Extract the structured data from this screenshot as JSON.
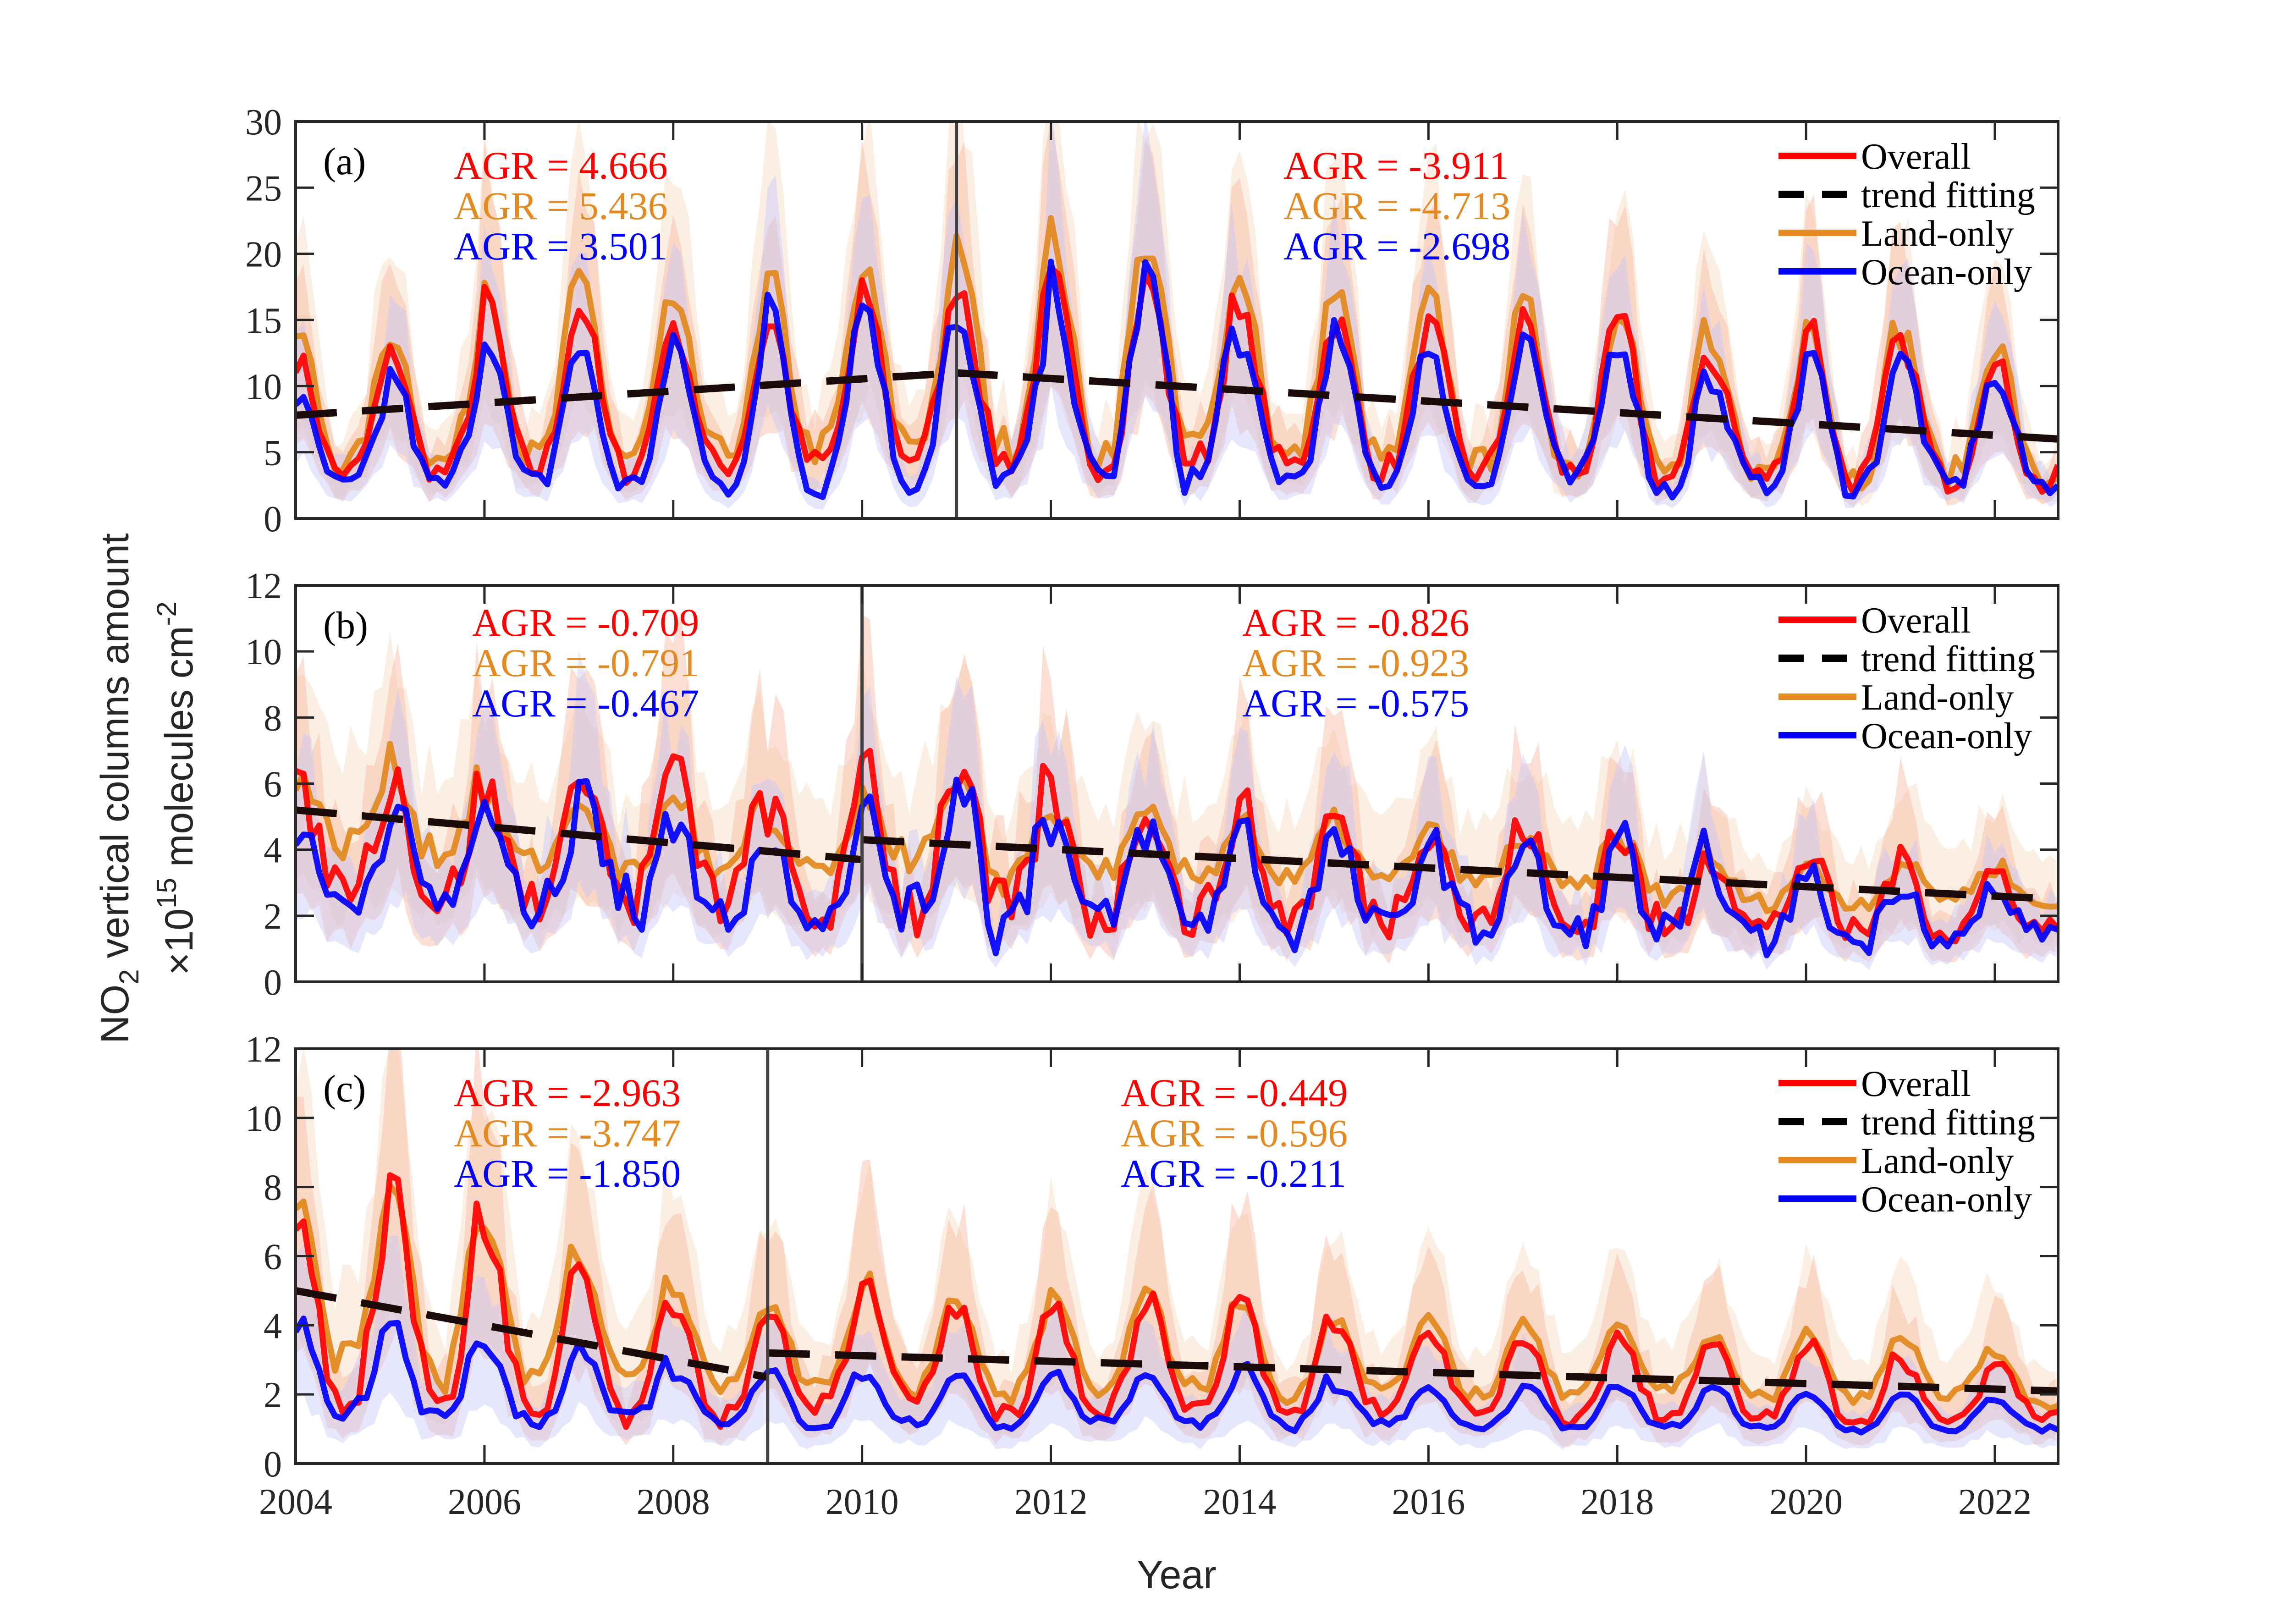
{
  "chart_data": {
    "type": "line",
    "xlabel": "Year",
    "ylabel_line1": "NO",
    "ylabel_sub": "2",
    "ylabel_line1_rest": " vertical columns amount",
    "ylabel_line2_prefix": "×10",
    "ylabel_line2_sup": "15",
    "ylabel_line2_mid": " molecules cm",
    "ylabel_line2_sup2": "-2",
    "xlim": [
      2004,
      2022.67
    ],
    "xticks": [
      2004,
      2006,
      2008,
      2010,
      2012,
      2014,
      2016,
      2018,
      2020,
      2022
    ],
    "xtick_labels": [
      "2004",
      "2006",
      "2008",
      "2010",
      "2012",
      "2014",
      "2016",
      "2018",
      "2020",
      "2022"
    ],
    "legend": {
      "placement": "top-right",
      "entries": [
        {
          "label": "Overall",
          "style": "solid",
          "color": "#ff0000"
        },
        {
          "label": "trend fitting",
          "style": "dashed",
          "color": "#000000"
        },
        {
          "label": "Land-only",
          "style": "solid",
          "color": "#e38a22"
        },
        {
          "label": "Ocean-only",
          "style": "solid",
          "color": "#0000ff"
        }
      ]
    },
    "colors": {
      "overall": "#ff0000",
      "land": "#e38a22",
      "ocean": "#0000ff",
      "trend": "#000000",
      "band_overall": "#f8b8a0",
      "band_land": "#f7dcc0",
      "band_ocean": "#c8c8f8"
    },
    "years": [
      2004,
      2005,
      2006,
      2007,
      2008,
      2009,
      2010,
      2011,
      2012,
      2013,
      2014,
      2015,
      2016,
      2017,
      2018,
      2019,
      2020,
      2021,
      2022
    ],
    "panels": [
      {
        "label": "(a)",
        "ylim": [
          0,
          30
        ],
        "yticks": [
          0,
          5,
          10,
          15,
          20,
          25,
          30
        ],
        "breakpoint": 2011.0,
        "agr_left": {
          "overall": "AGR = 4.666",
          "land": "AGR = 5.436",
          "ocean": "AGR = 3.501"
        },
        "agr_right": {
          "overall": "AGR = -3.911",
          "land": "AGR = -4.713",
          "ocean": "AGR = -2.698"
        },
        "trend": [
          {
            "x": 2004,
            "y": 7.8
          },
          {
            "x": 2011,
            "y": 11.0
          },
          {
            "x": 2022.67,
            "y": 6.0
          }
        ],
        "series": [
          {
            "name": "Overall",
            "peak": [
              12,
              12.5,
              16.5,
              16,
              14,
              15,
              17,
              18,
              18,
              18,
              15,
              15,
              14.5,
              15,
              15,
              11.5,
              15,
              13,
              11.5
            ],
            "trough": [
              3.5,
              3.5,
              3.8,
              3.8,
              4.0,
              4.2,
              4.8,
              4.5,
              4.3,
              4.5,
              4.0,
              3.8,
              3.5,
              3.5,
              3.0,
              3.2,
              3.0,
              3.0,
              2.5
            ]
          },
          {
            "name": "Land-only",
            "peak": [
              14,
              14,
              18.5,
              18,
              15.5,
              18,
              18.5,
              20.5,
              21.5,
              21,
              18,
              17,
              16.5,
              16,
              16.5,
              12,
              16,
              14,
              13
            ],
            "trough": [
              4.2,
              4.3,
              4.5,
              4.7,
              5.0,
              5.3,
              6.0,
              5.5,
              5.2,
              5.5,
              4.5,
              4.5,
              4.0,
              4.0,
              3.5,
              3.5,
              3.2,
              3.5,
              2.8
            ]
          },
          {
            "name": "Ocean-only",
            "peak": [
              9,
              11,
              14,
              12.5,
              13,
              16,
              16.5,
              14,
              18,
              18.5,
              12,
              14,
              12,
              14,
              13.5,
              9.5,
              13,
              12,
              10
            ],
            "trough": [
              2.5,
              2.5,
              2.5,
              2.5,
              2.5,
              2.8,
              3.0,
              3.0,
              3.0,
              3.0,
              3.0,
              3.0,
              2.8,
              2.8,
              2.2,
              2.5,
              2.5,
              2.5,
              2.5
            ]
          }
        ]
      },
      {
        "label": "(b)",
        "ylim": [
          0,
          12
        ],
        "yticks": [
          0,
          2,
          4,
          6,
          8,
          10,
          12
        ],
        "breakpoint": 2010.0,
        "agr_left": {
          "overall": "AGR = -0.709",
          "land": "AGR = -0.791",
          "ocean": "AGR = -0.467"
        },
        "agr_right": {
          "overall": "AGR = -0.826",
          "land": "AGR = -0.923",
          "ocean": "AGR = -0.575"
        },
        "trend": [
          {
            "x": 2004,
            "y": 5.2
          },
          {
            "x": 2010,
            "y": 3.7
          },
          {
            "x": 2010.01,
            "y": 4.3
          },
          {
            "x": 2022.67,
            "y": 2.5
          }
        ],
        "series": [
          {
            "name": "Overall",
            "peak": [
              5.8,
              6.3,
              5.7,
              7.0,
              6.2,
              5.2,
              7.0,
              6.6,
              5.5,
              5.5,
              5.2,
              5.0,
              4.8,
              4.8,
              4.5,
              3.8,
              3.8,
              3.6,
              3.3
            ],
            "trough": [
              3.0,
              2.5,
              2.6,
              2.5,
              2.5,
              2.0,
              2.3,
              2.0,
              2.0,
              2.0,
              2.0,
              2.0,
              1.8,
              1.6,
              1.6,
              1.6,
              1.5,
              1.5,
              1.6
            ]
          },
          {
            "name": "Land-only",
            "peak": [
              6.3,
              6.6,
              5.4,
              5.6,
              5.8,
              4.6,
              5.8,
              5.8,
              5.0,
              5.0,
              5.0,
              4.8,
              4.5,
              4.4,
              4.4,
              3.5,
              3.5,
              3.6,
              3.5
            ],
            "trough": [
              4.2,
              4.0,
              3.6,
              3.4,
              3.2,
              3.4,
              3.8,
              3.2,
              3.4,
              3.2,
              3.0,
              3.0,
              3.0,
              2.8,
              2.6,
              2.4,
              2.4,
              2.6,
              2.3
            ]
          },
          {
            "name": "Ocean-only",
            "peak": [
              4.6,
              5.4,
              5.0,
              6.6,
              4.6,
              4.2,
              5.2,
              6.6,
              4.8,
              4.6,
              4.6,
              4.2,
              4.2,
              4.0,
              4.4,
              3.2,
              3.2,
              3.0,
              2.6
            ],
            "trough": [
              2.4,
              2.4,
              2.2,
              2.2,
              2.0,
              2.0,
              2.2,
              1.8,
              1.8,
              1.8,
              1.6,
              1.6,
              1.6,
              1.4,
              1.4,
              1.2,
              1.2,
              1.2,
              1.5
            ]
          }
        ]
      },
      {
        "label": "(c)",
        "ylim": [
          0,
          12
        ],
        "yticks": [
          0,
          2,
          4,
          6,
          8,
          10,
          12
        ],
        "breakpoint": 2009.0,
        "agr_left": {
          "overall": "AGR = -2.963",
          "land": "AGR = -3.747",
          "ocean": "AGR = -1.850"
        },
        "agr_right": {
          "overall": "AGR = -0.449",
          "land": "AGR = -0.596",
          "ocean": "AGR = -0.211"
        },
        "trend": [
          {
            "x": 2004,
            "y": 5.0
          },
          {
            "x": 2009,
            "y": 2.5
          },
          {
            "x": 2009.01,
            "y": 3.2
          },
          {
            "x": 2022.67,
            "y": 2.1
          }
        ],
        "series": [
          {
            "name": "Overall",
            "peak": [
              7.3,
              8.2,
              6.8,
              5.8,
              4.6,
              4.4,
              5.4,
              4.5,
              4.5,
              4.8,
              4.7,
              4.0,
              3.8,
              3.5,
              3.7,
              3.4,
              3.5,
              2.9,
              3.0
            ],
            "trough": [
              1.9,
              1.8,
              1.6,
              1.5,
              1.4,
              1.7,
              1.8,
              1.4,
              1.6,
              1.5,
              1.4,
              1.6,
              1.4,
              1.3,
              1.4,
              1.3,
              1.2,
              1.2,
              1.4
            ]
          },
          {
            "name": "Land-only",
            "peak": [
              7.5,
              8.1,
              7.0,
              5.9,
              5.0,
              4.7,
              5.4,
              4.6,
              5.0,
              4.9,
              4.6,
              4.2,
              4.1,
              4.0,
              3.9,
              3.7,
              3.8,
              3.7,
              3.0
            ],
            "trough": [
              3.0,
              2.6,
              2.6,
              2.6,
              2.2,
              2.2,
              2.2,
              2.0,
              2.2,
              2.2,
              2.0,
              2.2,
              2.0,
              2.0,
              2.2,
              1.9,
              1.9,
              2.0,
              1.7
            ]
          },
          {
            "name": "Ocean-only",
            "peak": [
              4.1,
              4.1,
              3.4,
              3.3,
              2.6,
              2.7,
              2.6,
              2.5,
              2.6,
              2.6,
              2.8,
              2.2,
              2.2,
              2.3,
              2.2,
              2.2,
              2.0,
              2.0,
              1.8
            ],
            "trough": [
              1.5,
              1.3,
              1.2,
              1.3,
              1.2,
              1.1,
              1.2,
              1.1,
              1.2,
              1.1,
              1.1,
              1.2,
              1.0,
              1.1,
              1.1,
              1.0,
              1.0,
              1.0,
              1.0
            ]
          }
        ]
      }
    ]
  }
}
